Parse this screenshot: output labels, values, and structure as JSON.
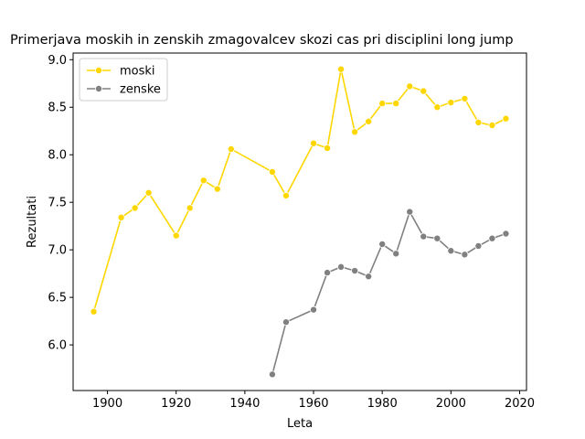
{
  "chart_data": {
    "type": "line",
    "title": "Primerjava moskih in zenskih zmagovalcev skozi cas pri disciplini long jump",
    "xlabel": "Leta",
    "ylabel": "Rezultati",
    "xlim": [
      1890,
      2022
    ],
    "ylim": [
      5.52,
      9.07
    ],
    "xticks": [
      1900,
      1920,
      1940,
      1960,
      1980,
      2000,
      2020
    ],
    "yticks": [
      6.0,
      6.5,
      7.0,
      7.5,
      8.0,
      8.5,
      9.0
    ],
    "xtick_labels": [
      "1900",
      "1920",
      "1940",
      "1960",
      "1980",
      "2000",
      "2020"
    ],
    "ytick_labels": [
      "6.0",
      "6.5",
      "7.0",
      "7.5",
      "8.0",
      "8.5",
      "9.0"
    ],
    "grid": false,
    "legend_position": "top-left",
    "series": [
      {
        "name": "moski",
        "color": "#ffd700",
        "x": [
          1896,
          1904,
          1908,
          1912,
          1920,
          1924,
          1928,
          1932,
          1936,
          1948,
          1952,
          1960,
          1964,
          1968,
          1972,
          1976,
          1980,
          1984,
          1988,
          1992,
          1996,
          2000,
          2004,
          2008,
          2012,
          2016
        ],
        "y": [
          6.35,
          7.34,
          7.44,
          7.6,
          7.15,
          7.44,
          7.73,
          7.64,
          8.06,
          7.82,
          7.57,
          8.12,
          8.07,
          8.9,
          8.24,
          8.35,
          8.54,
          8.54,
          8.72,
          8.67,
          8.5,
          8.55,
          8.59,
          8.34,
          8.31,
          8.38
        ]
      },
      {
        "name": "zenske",
        "color": "#808080",
        "x": [
          1948,
          1952,
          1960,
          1964,
          1968,
          1972,
          1976,
          1980,
          1984,
          1988,
          1992,
          1996,
          2000,
          2004,
          2008,
          2012,
          2016
        ],
        "y": [
          5.69,
          6.24,
          6.37,
          6.76,
          6.82,
          6.78,
          6.72,
          7.06,
          6.96,
          7.4,
          7.14,
          7.12,
          6.99,
          6.95,
          7.04,
          7.12,
          7.17
        ]
      }
    ]
  }
}
